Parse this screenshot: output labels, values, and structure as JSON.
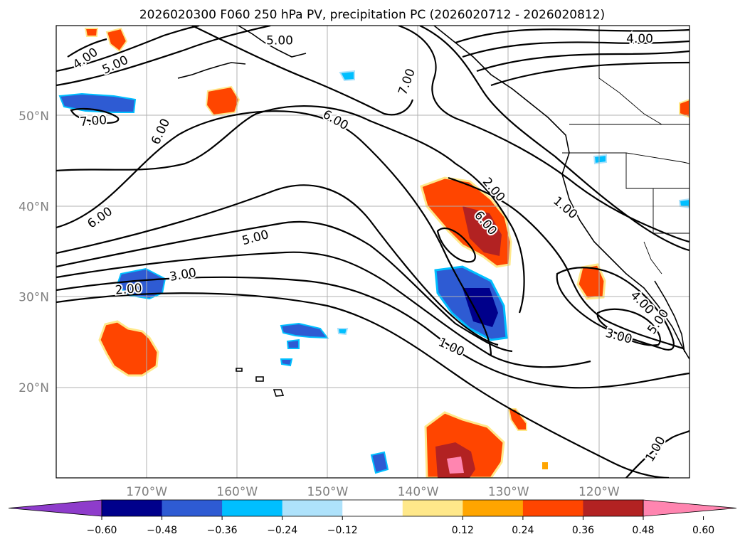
{
  "title": "2026020300 F060 250 hPa PV, precipitation PC (2026020712 - 2026020812)",
  "lat_labels": [
    {
      "value": "50°N",
      "lat": 50
    },
    {
      "value": "40°N",
      "lat": 40
    },
    {
      "value": "30°N",
      "lat": 30
    },
    {
      "value": "20°N",
      "lat": 20
    }
  ],
  "lon_labels": [
    {
      "value": "170°W",
      "lon": -170
    },
    {
      "value": "160°W",
      "lon": -160
    },
    {
      "value": "150°W",
      "lon": -150
    },
    {
      "value": "140°W",
      "lon": -140
    },
    {
      "value": "130°W",
      "lon": -130
    },
    {
      "value": "120°W",
      "lon": -120
    }
  ],
  "extent": {
    "lon_min": -180,
    "lon_max": -110,
    "lat_min": 10,
    "lat_max": 60
  },
  "colorbar": {
    "labels": [
      "−0.60",
      "−0.48",
      "−0.36",
      "−0.24",
      "−0.12",
      "0.12",
      "0.24",
      "0.36",
      "0.48",
      "0.60"
    ],
    "colors": [
      "#8e3ccb",
      "#00008b",
      "#2e5bd3",
      "#00bfff",
      "#aee2fb",
      "#ffffff",
      "#ffe88a",
      "#ffa500",
      "#ff4500",
      "#b22222",
      "#ff85b0"
    ],
    "extend": "both"
  },
  "contour_labels": [
    {
      "text": "4.00",
      "lon": -176.8,
      "lat": 56.4,
      "angle": -35
    },
    {
      "text": "5.00",
      "lon": -155.3,
      "lat": 58.4,
      "angle": 0
    },
    {
      "text": "5.00",
      "lon": -173.5,
      "lat": 55.7,
      "angle": -25
    },
    {
      "text": "7.00",
      "lon": -175.9,
      "lat": 49.5,
      "angle": -5
    },
    {
      "text": "6.00",
      "lon": -168.5,
      "lat": 48.3,
      "angle": -65
    },
    {
      "text": "6.00",
      "lon": -149.1,
      "lat": 49.6,
      "angle": 30
    },
    {
      "text": "7.00",
      "lon": -141.3,
      "lat": 53.8,
      "angle": -70
    },
    {
      "text": "4.00",
      "lon": -115.5,
      "lat": 58.6,
      "angle": 0
    },
    {
      "text": "6.00",
      "lon": -175.2,
      "lat": 38.8,
      "angle": -35
    },
    {
      "text": "5.00",
      "lon": -158.0,
      "lat": 36.6,
      "angle": -15
    },
    {
      "text": "3.00",
      "lon": -166.0,
      "lat": 32.5,
      "angle": -10
    },
    {
      "text": "2.00",
      "lon": -172.0,
      "lat": 30.9,
      "angle": -5
    },
    {
      "text": "2.00",
      "lon": -131.6,
      "lat": 41.9,
      "angle": 50
    },
    {
      "text": "6.00",
      "lon": -132.5,
      "lat": 38.2,
      "angle": 50
    },
    {
      "text": "1.00",
      "lon": -123.7,
      "lat": 39.9,
      "angle": 40
    },
    {
      "text": "1.00",
      "lon": -136.3,
      "lat": 24.5,
      "angle": 25
    },
    {
      "text": "4.00",
      "lon": -115.2,
      "lat": 29.4,
      "angle": 45
    },
    {
      "text": "3.00",
      "lon": -117.8,
      "lat": 25.7,
      "angle": 15
    },
    {
      "text": "5.00",
      "lon": -113.5,
      "lat": 27.3,
      "angle": -55
    },
    {
      "text": "1.00",
      "lon": -113.8,
      "lat": 13.2,
      "angle": -60
    }
  ]
}
